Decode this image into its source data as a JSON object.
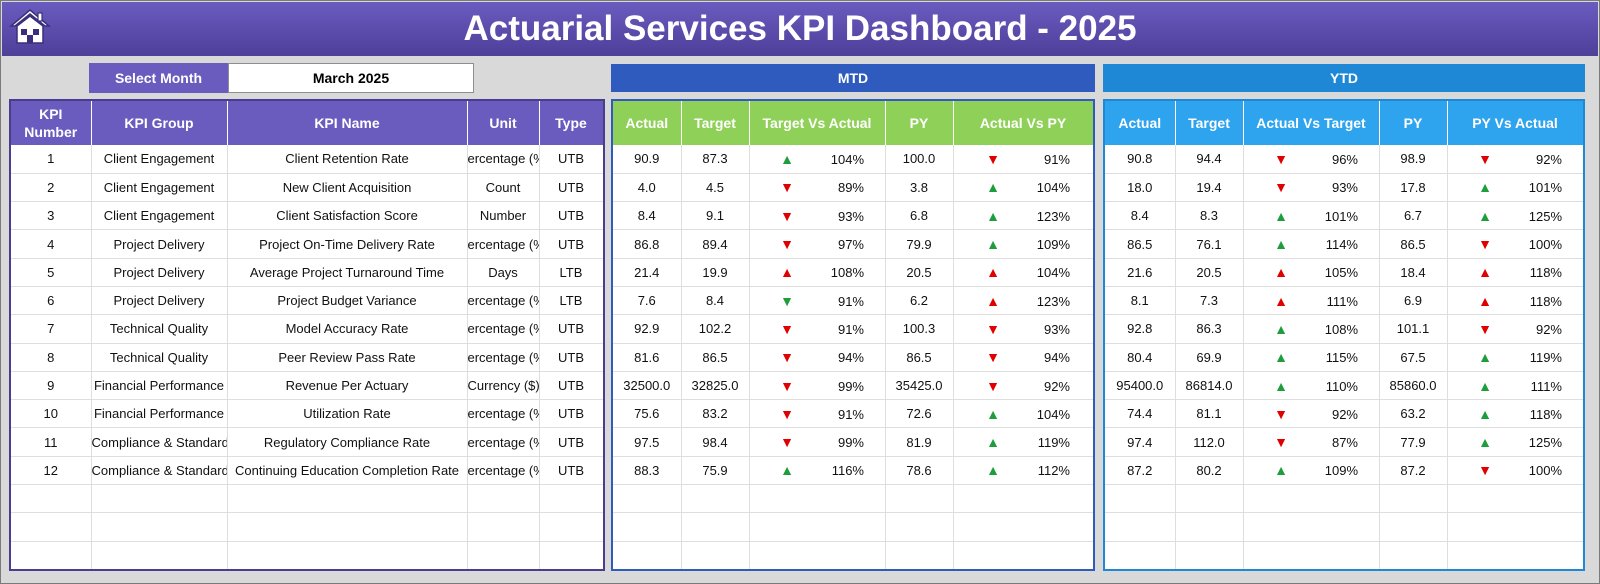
{
  "title": "Actuarial Services KPI Dashboard - 2025",
  "controls": {
    "select_month_label": "Select Month",
    "selected_month": "March 2025",
    "mtd_label": "MTD",
    "ytd_label": "YTD"
  },
  "colors": {
    "title": "#5a4bab",
    "left_header": "#6a5bbf",
    "mtd_header": "#8fd158",
    "ytd_header": "#2ea3ee",
    "up_arrow": "#1e9e3a",
    "down_arrow": "#e00000"
  },
  "icons": {
    "home": "home-icon",
    "up": "triangle-up-icon",
    "down": "triangle-down-icon"
  },
  "left_headers": [
    "KPI Number",
    "KPI Group",
    "KPI Name",
    "Unit",
    "Type"
  ],
  "mtd_headers": [
    "Actual",
    "Target",
    "Target Vs Actual",
    "PY",
    "Actual Vs PY"
  ],
  "ytd_headers": [
    "Actual",
    "Target",
    "Actual Vs Target",
    "PY",
    "PY Vs Actual"
  ],
  "rows": [
    {
      "num": "1",
      "group": "Client Engagement",
      "name": "Client Retention Rate",
      "unit": "ercentage (%",
      "type": "UTB",
      "mtd": {
        "actual": "90.9",
        "target": "87.3",
        "tva_dir": "up",
        "tva": "104%",
        "py": "100.0",
        "avpy_dir": "down",
        "avpy": "91%"
      },
      "ytd": {
        "actual": "90.8",
        "target": "94.4",
        "avt_dir": "down",
        "avt": "96%",
        "py": "98.9",
        "pyva_dir": "down",
        "pyva": "92%"
      }
    },
    {
      "num": "2",
      "group": "Client Engagement",
      "name": "New Client Acquisition",
      "unit": "Count",
      "type": "UTB",
      "mtd": {
        "actual": "4.0",
        "target": "4.5",
        "tva_dir": "down",
        "tva": "89%",
        "py": "3.8",
        "avpy_dir": "up",
        "avpy": "104%"
      },
      "ytd": {
        "actual": "18.0",
        "target": "19.4",
        "avt_dir": "down",
        "avt": "93%",
        "py": "17.8",
        "pyva_dir": "up",
        "pyva": "101%"
      }
    },
    {
      "num": "3",
      "group": "Client Engagement",
      "name": "Client Satisfaction Score",
      "unit": "Number",
      "type": "UTB",
      "mtd": {
        "actual": "8.4",
        "target": "9.1",
        "tva_dir": "down",
        "tva": "93%",
        "py": "6.8",
        "avpy_dir": "up",
        "avpy": "123%"
      },
      "ytd": {
        "actual": "8.4",
        "target": "8.3",
        "avt_dir": "up",
        "avt": "101%",
        "py": "6.7",
        "pyva_dir": "up",
        "pyva": "125%"
      }
    },
    {
      "num": "4",
      "group": "Project Delivery",
      "name": "Project On-Time Delivery Rate",
      "unit": "ercentage (%",
      "type": "UTB",
      "mtd": {
        "actual": "86.8",
        "target": "89.4",
        "tva_dir": "down",
        "tva": "97%",
        "py": "79.9",
        "avpy_dir": "up",
        "avpy": "109%"
      },
      "ytd": {
        "actual": "86.5",
        "target": "76.1",
        "avt_dir": "up",
        "avt": "114%",
        "py": "86.5",
        "pyva_dir": "down",
        "pyva": "100%"
      }
    },
    {
      "num": "5",
      "group": "Project Delivery",
      "name": "Average Project Turnaround Time",
      "unit": "Days",
      "type": "LTB",
      "mtd": {
        "actual": "21.4",
        "target": "19.9",
        "tva_dir": "up-red",
        "tva": "108%",
        "py": "20.5",
        "avpy_dir": "up-red",
        "avpy": "104%"
      },
      "ytd": {
        "actual": "21.6",
        "target": "20.5",
        "avt_dir": "up-red",
        "avt": "105%",
        "py": "18.4",
        "pyva_dir": "up-red",
        "pyva": "118%"
      }
    },
    {
      "num": "6",
      "group": "Project Delivery",
      "name": "Project Budget Variance",
      "unit": "ercentage (%",
      "type": "LTB",
      "mtd": {
        "actual": "7.6",
        "target": "8.4",
        "tva_dir": "down-green",
        "tva": "91%",
        "py": "6.2",
        "avpy_dir": "up-red",
        "avpy": "123%"
      },
      "ytd": {
        "actual": "8.1",
        "target": "7.3",
        "avt_dir": "up-red",
        "avt": "111%",
        "py": "6.9",
        "pyva_dir": "up-red",
        "pyva": "118%"
      }
    },
    {
      "num": "7",
      "group": "Technical Quality",
      "name": "Model Accuracy Rate",
      "unit": "ercentage (%",
      "type": "UTB",
      "mtd": {
        "actual": "92.9",
        "target": "102.2",
        "tva_dir": "down",
        "tva": "91%",
        "py": "100.3",
        "avpy_dir": "down",
        "avpy": "93%"
      },
      "ytd": {
        "actual": "92.8",
        "target": "86.3",
        "avt_dir": "up",
        "avt": "108%",
        "py": "101.1",
        "pyva_dir": "down",
        "pyva": "92%"
      }
    },
    {
      "num": "8",
      "group": "Technical Quality",
      "name": "Peer Review Pass Rate",
      "unit": "ercentage (%",
      "type": "UTB",
      "mtd": {
        "actual": "81.6",
        "target": "86.5",
        "tva_dir": "down",
        "tva": "94%",
        "py": "86.5",
        "avpy_dir": "down",
        "avpy": "94%"
      },
      "ytd": {
        "actual": "80.4",
        "target": "69.9",
        "avt_dir": "up",
        "avt": "115%",
        "py": "67.5",
        "pyva_dir": "up",
        "pyva": "119%"
      }
    },
    {
      "num": "9",
      "group": "Financial Performance",
      "name": "Revenue Per Actuary",
      "unit": "Currency ($)",
      "type": "UTB",
      "mtd": {
        "actual": "32500.0",
        "target": "32825.0",
        "tva_dir": "down",
        "tva": "99%",
        "py": "35425.0",
        "avpy_dir": "down",
        "avpy": "92%"
      },
      "ytd": {
        "actual": "95400.0",
        "target": "86814.0",
        "avt_dir": "up",
        "avt": "110%",
        "py": "85860.0",
        "pyva_dir": "up",
        "pyva": "111%"
      }
    },
    {
      "num": "10",
      "group": "Financial Performance",
      "name": "Utilization Rate",
      "unit": "ercentage (%",
      "type": "UTB",
      "mtd": {
        "actual": "75.6",
        "target": "83.2",
        "tva_dir": "down",
        "tva": "91%",
        "py": "72.6",
        "avpy_dir": "up",
        "avpy": "104%"
      },
      "ytd": {
        "actual": "74.4",
        "target": "81.1",
        "avt_dir": "down",
        "avt": "92%",
        "py": "63.2",
        "pyva_dir": "up",
        "pyva": "118%"
      }
    },
    {
      "num": "11",
      "group": "Compliance & Standards",
      "name": "Regulatory Compliance Rate",
      "unit": "ercentage (%",
      "type": "UTB",
      "mtd": {
        "actual": "97.5",
        "target": "98.4",
        "tva_dir": "down",
        "tva": "99%",
        "py": "81.9",
        "avpy_dir": "up",
        "avpy": "119%"
      },
      "ytd": {
        "actual": "97.4",
        "target": "112.0",
        "avt_dir": "down",
        "avt": "87%",
        "py": "77.9",
        "pyva_dir": "up",
        "pyva": "125%"
      }
    },
    {
      "num": "12",
      "group": "Compliance & Standards",
      "name": "Continuing Education Completion Rate",
      "unit": "ercentage (%",
      "type": "UTB",
      "mtd": {
        "actual": "88.3",
        "target": "75.9",
        "tva_dir": "up",
        "tva": "116%",
        "py": "78.6",
        "avpy_dir": "up",
        "avpy": "112%"
      },
      "ytd": {
        "actual": "87.2",
        "target": "80.2",
        "avt_dir": "up",
        "avt": "109%",
        "py": "87.2",
        "pyva_dir": "down",
        "pyva": "100%"
      }
    }
  ]
}
